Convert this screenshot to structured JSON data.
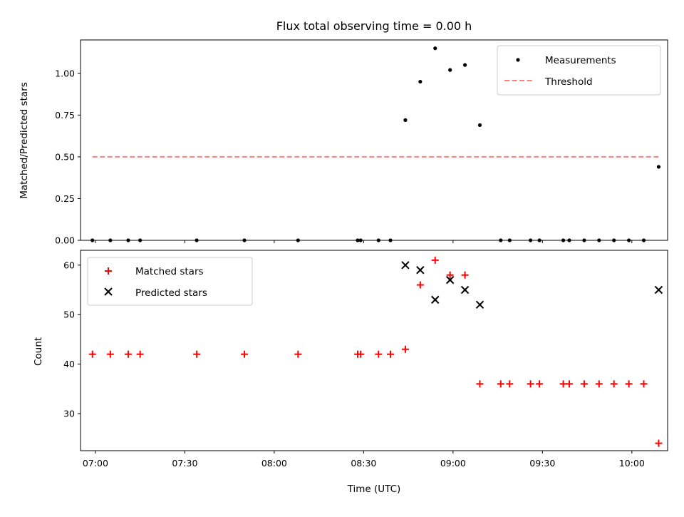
{
  "chart_data": [
    {
      "type": "scatter",
      "title": "Flux total observing time = 0.00 h",
      "xlabel": "",
      "ylabel": "Matched/Predicted stars",
      "xlim": [
        "06:55",
        "10:12"
      ],
      "ylim": [
        0,
        1.2
      ],
      "yticks": [
        0.0,
        0.25,
        0.5,
        0.75,
        1.0
      ],
      "ytick_labels": [
        "0.00",
        "0.25",
        "0.50",
        "0.75",
        "1.00"
      ],
      "grid": false,
      "legend": "top-right",
      "series": [
        {
          "name": "Measurements",
          "kind": "scatter",
          "color": "#000000",
          "x": [
            "06:59",
            "07:05",
            "07:11",
            "07:15",
            "07:34",
            "07:50",
            "08:08",
            "08:28",
            "08:29",
            "08:35",
            "08:39",
            "08:44",
            "08:49",
            "08:54",
            "08:59",
            "09:04",
            "09:09",
            "09:16",
            "09:19",
            "09:26",
            "09:29",
            "09:37",
            "09:39",
            "09:44",
            "09:49",
            "09:54",
            "09:59",
            "10:04",
            "10:09"
          ],
          "y": [
            0,
            0,
            0,
            0,
            0,
            0,
            0,
            0,
            0,
            0,
            0,
            0.72,
            0.95,
            1.15,
            1.02,
            1.05,
            0.69,
            0,
            0,
            0,
            0,
            0,
            0,
            0,
            0,
            0,
            0,
            0,
            0.44
          ]
        },
        {
          "name": "Threshold",
          "kind": "line",
          "style": "dashed",
          "color": "#ff7f7f",
          "x": [
            "06:59",
            "10:09"
          ],
          "y": [
            0.5,
            0.5
          ]
        }
      ]
    },
    {
      "type": "scatter",
      "title": "",
      "xlabel": "Time (UTC)",
      "ylabel": "Count",
      "xlim": [
        "06:55",
        "10:12"
      ],
      "ylim": [
        22.5,
        63
      ],
      "yticks": [
        30,
        40,
        50,
        60
      ],
      "ytick_labels": [
        "30",
        "40",
        "50",
        "60"
      ],
      "xticks": [
        "07:00",
        "07:30",
        "08:00",
        "08:30",
        "09:00",
        "09:30",
        "10:00"
      ],
      "xtick_labels": [
        "07:00",
        "07:30",
        "08:00",
        "08:30",
        "09:00",
        "09:30",
        "10:00"
      ],
      "grid": false,
      "legend": "top-left",
      "series": [
        {
          "name": "Matched stars",
          "marker": "plus",
          "color": "#ff0000",
          "x": [
            "06:59",
            "07:05",
            "07:11",
            "07:15",
            "07:34",
            "07:50",
            "08:08",
            "08:28",
            "08:29",
            "08:35",
            "08:39",
            "08:44",
            "08:49",
            "08:54",
            "08:59",
            "09:04",
            "09:09",
            "09:16",
            "09:19",
            "09:26",
            "09:29",
            "09:37",
            "09:39",
            "09:44",
            "09:49",
            "09:54",
            "09:59",
            "10:04",
            "10:09"
          ],
          "y": [
            42,
            42,
            42,
            42,
            42,
            42,
            42,
            42,
            42,
            42,
            42,
            43,
            56,
            61,
            58,
            58,
            36,
            36,
            36,
            36,
            36,
            36,
            36,
            36,
            36,
            36,
            36,
            36,
            24
          ]
        },
        {
          "name": "Predicted stars",
          "marker": "x",
          "color": "#000000",
          "x": [
            "08:44",
            "08:49",
            "08:54",
            "08:59",
            "09:04",
            "09:09",
            "10:09"
          ],
          "y": [
            60,
            59,
            53,
            57,
            55,
            52,
            55
          ]
        }
      ]
    }
  ]
}
